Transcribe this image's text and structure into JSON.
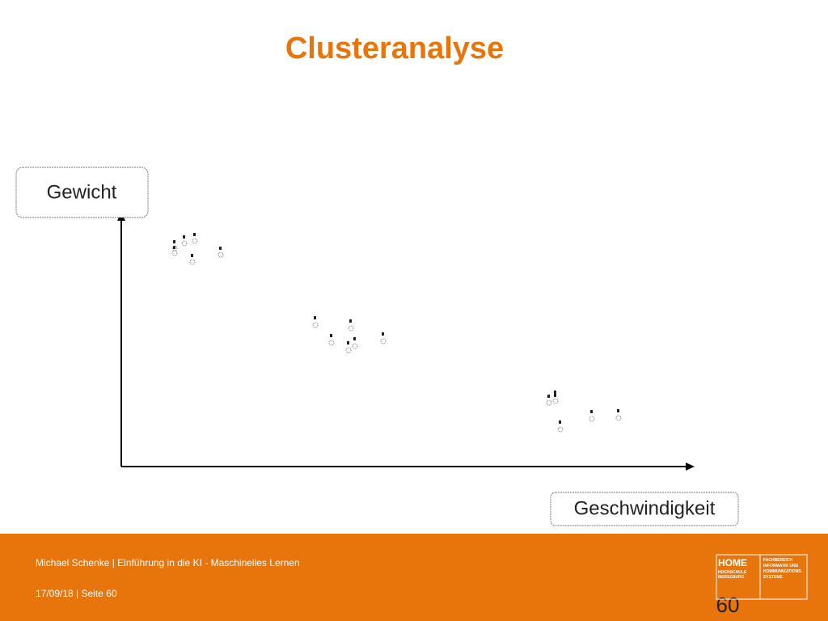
{
  "slide": {
    "title": "Clusteranalyse",
    "diagram": {
      "y_label": "Gewicht",
      "x_label": "Geschwindigkeit"
    },
    "footer": {
      "author_line": "Michael Schenke | Einführung in  die KI - Maschinelles Lernen",
      "date_line": "17/09/18 | Seite 60",
      "page_number": "60",
      "logo": {
        "name": "HOME",
        "school": "HOCHSCHULE MERSEBURG",
        "department": "FACHBEREICH INFORMATIK UND KOMMUNIKATIONS-SYSTEME"
      }
    }
  }
}
